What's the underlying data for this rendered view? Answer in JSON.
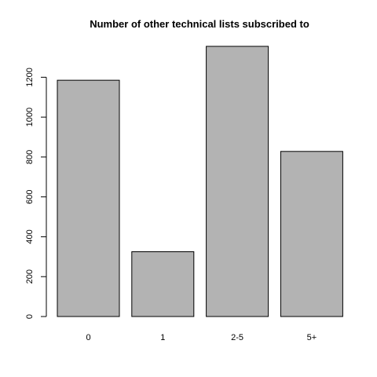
{
  "chart_data": {
    "type": "bar",
    "title": "Number of other technical lists subscribed to",
    "categories": [
      "0",
      "1",
      "2-5",
      "5+"
    ],
    "values": [
      1185,
      325,
      1355,
      828
    ],
    "ylim": [
      0,
      1355
    ],
    "yticks": [
      0,
      200,
      400,
      600,
      800,
      1000,
      1200
    ],
    "bar_color": "#b3b3b3",
    "xlabel": "",
    "ylabel": "",
    "grid": false
  }
}
